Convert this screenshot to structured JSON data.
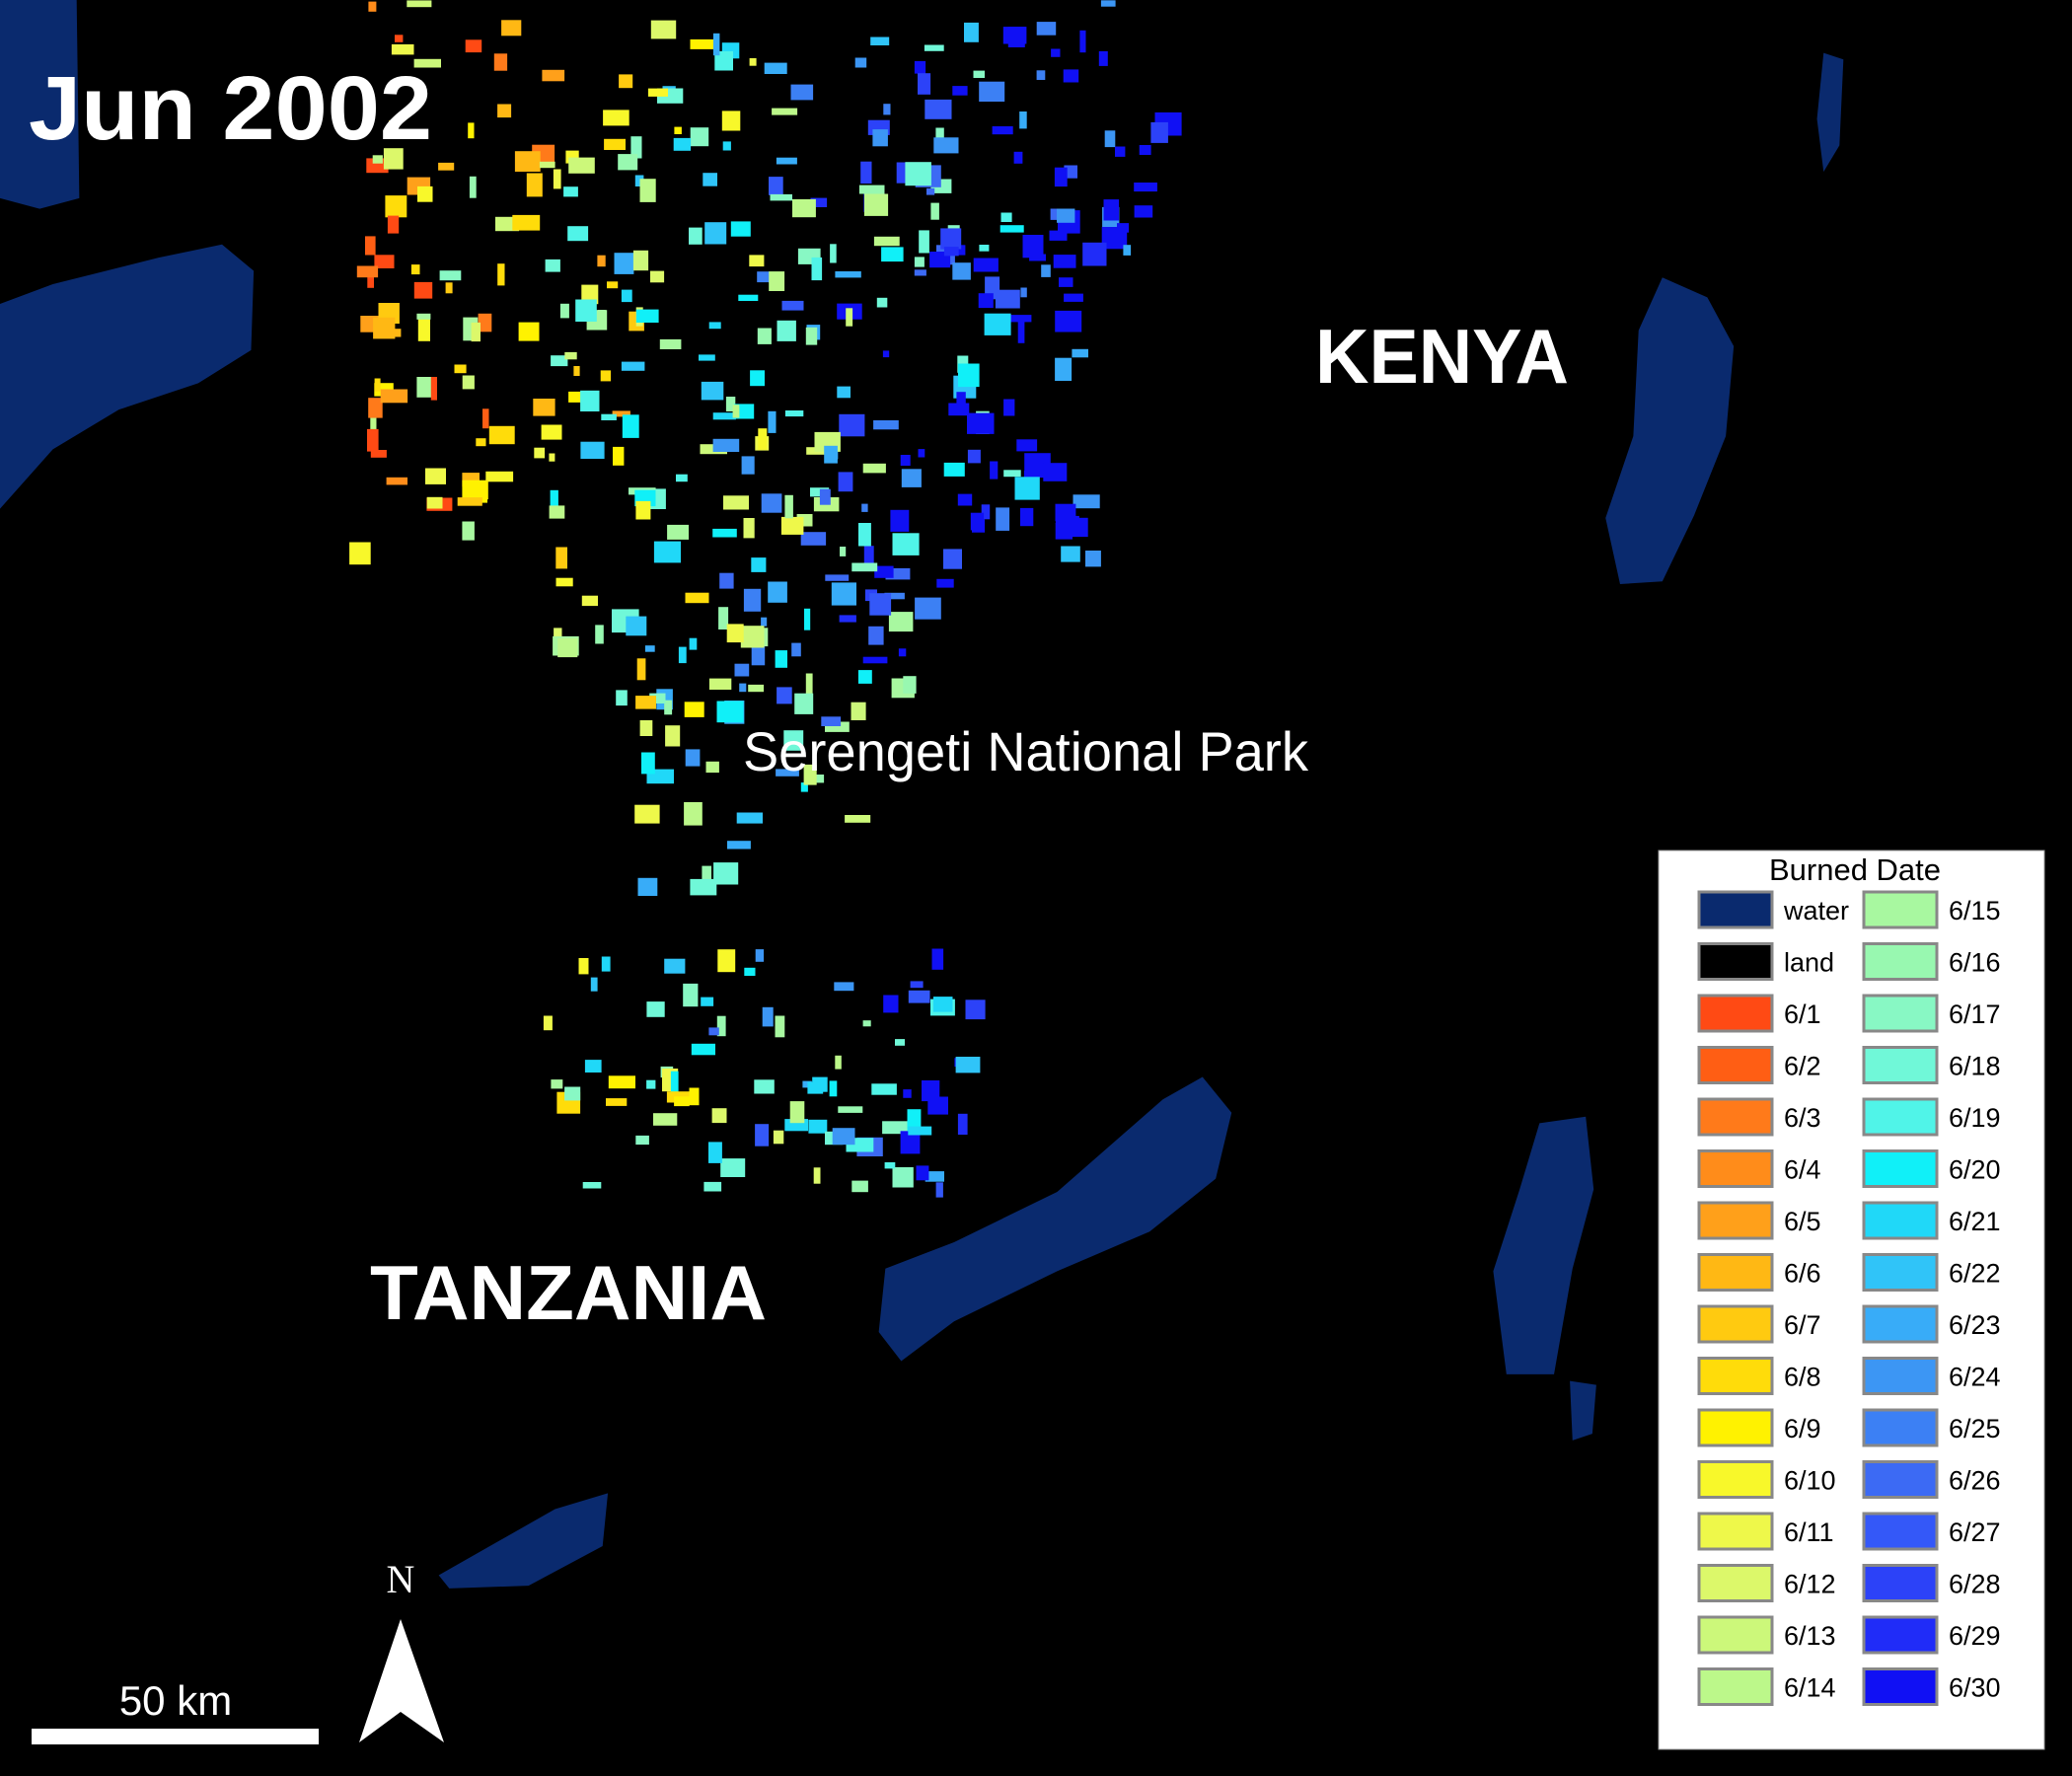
{
  "title": "Jun 2002",
  "labels": {
    "kenya": "KENYA",
    "tanzania": "TANZANIA",
    "park": "Serengeti National Park"
  },
  "legend": {
    "title": "Burned Date",
    "items": [
      {
        "label": "water",
        "color": "#0a2a6e"
      },
      {
        "label": "land",
        "color": "#000000"
      },
      {
        "label": "6/1",
        "color": "#ff4a14"
      },
      {
        "label": "6/2",
        "color": "#ff5e14"
      },
      {
        "label": "6/3",
        "color": "#ff7a1a"
      },
      {
        "label": "6/4",
        "color": "#ff8c1a"
      },
      {
        "label": "6/5",
        "color": "#ffa01a"
      },
      {
        "label": "6/6",
        "color": "#ffb814"
      },
      {
        "label": "6/7",
        "color": "#ffca10"
      },
      {
        "label": "6/8",
        "color": "#ffdc0a"
      },
      {
        "label": "6/9",
        "color": "#fff200"
      },
      {
        "label": "6/10",
        "color": "#f8f82a"
      },
      {
        "label": "6/11",
        "color": "#eef84a"
      },
      {
        "label": "6/12",
        "color": "#dcf86a"
      },
      {
        "label": "6/13",
        "color": "#ccf87a"
      },
      {
        "label": "6/14",
        "color": "#bcf88a"
      },
      {
        "label": "6/15",
        "color": "#a8f8a0"
      },
      {
        "label": "6/16",
        "color": "#98f8b0"
      },
      {
        "label": "6/17",
        "color": "#88f8c4"
      },
      {
        "label": "6/18",
        "color": "#70f8d8"
      },
      {
        "label": "6/19",
        "color": "#50f4e8"
      },
      {
        "label": "6/20",
        "color": "#10f0f8"
      },
      {
        "label": "6/21",
        "color": "#20d8f8"
      },
      {
        "label": "6/22",
        "color": "#30c4f8"
      },
      {
        "label": "6/23",
        "color": "#38acf8"
      },
      {
        "label": "6/24",
        "color": "#3c96f4"
      },
      {
        "label": "6/25",
        "color": "#3c80f4"
      },
      {
        "label": "6/26",
        "color": "#3c6af4"
      },
      {
        "label": "6/27",
        "color": "#3458f8"
      },
      {
        "label": "6/28",
        "color": "#2c42f8"
      },
      {
        "label": "6/29",
        "color": "#202cf8"
      },
      {
        "label": "6/30",
        "color": "#1010f4"
      }
    ]
  },
  "scale_bar": {
    "label": "50 km"
  },
  "north_arrow": {
    "label": "N"
  }
}
